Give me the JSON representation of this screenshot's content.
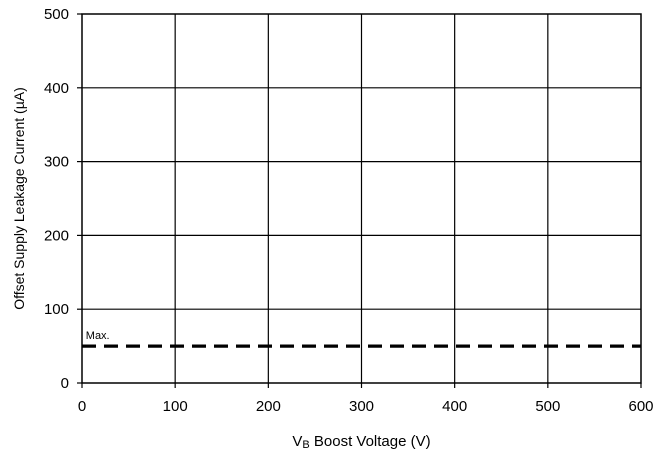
{
  "chart_data": {
    "type": "line",
    "title": "",
    "xlabel": "V",
    "xlabel_subscript": "B",
    "xlabel_rest": " Boost Voltage (V)",
    "ylabel": "Offset Supply Leakage Current (µA)",
    "xlim": [
      0,
      600
    ],
    "ylim": [
      0,
      500
    ],
    "xticks": [
      0,
      100,
      200,
      300,
      400,
      500,
      600
    ],
    "yticks": [
      0,
      100,
      200,
      300,
      400,
      500
    ],
    "grid": true,
    "series": [
      {
        "name": "Max.",
        "style": "dashed",
        "color": "#000000",
        "x": [
          0,
          600
        ],
        "y": [
          50,
          50
        ]
      }
    ],
    "annotations": [
      {
        "text": "Max.",
        "x": 3,
        "y": 57
      }
    ]
  }
}
